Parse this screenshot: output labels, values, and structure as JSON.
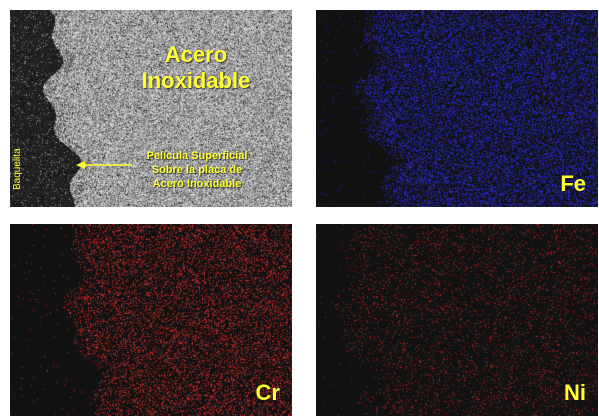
{
  "sem_panel": {
    "title_line1": "Acero",
    "title_line2": "Inoxidable",
    "film_line1": "Película Superficial",
    "film_line2": "Sobre la placa de",
    "film_line3": "Acero Inoxidable",
    "side_label": "Baquelita"
  },
  "maps": [
    {
      "element": "Fe",
      "dot_color": "#2a2ad8"
    },
    {
      "element": "Cr",
      "dot_color": "#d42a2a"
    },
    {
      "element": "Ni",
      "dot_color": "#c42424"
    }
  ],
  "colors": {
    "label": "#ffff33",
    "background": "#121212"
  }
}
